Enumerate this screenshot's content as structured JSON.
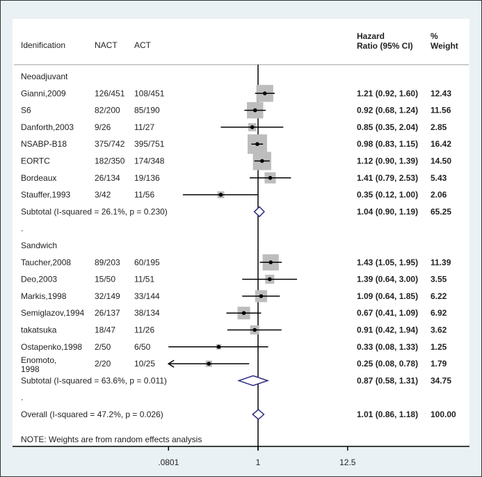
{
  "chart_data": {
    "type": "forest",
    "scale": "log",
    "reference_value": 1,
    "x_ticks": [
      {
        "value": 0.0801,
        "label": ".0801"
      },
      {
        "value": 1,
        "label": "1"
      },
      {
        "value": 12.5,
        "label": "12.5"
      }
    ],
    "headers": {
      "study": "Idenification",
      "nact": "NACT",
      "act": "ACT",
      "hr_line1": "Hazard",
      "hr_line2": "Ratio (95% CI)",
      "weight_line1": "%",
      "weight_line2": "Weight"
    },
    "rows": [
      {
        "type": "group",
        "label": "Neoadjuvant"
      },
      {
        "type": "study",
        "label": "Gianni,2009",
        "nact": "126/451",
        "act": "108/451",
        "hr": 1.21,
        "lo": 0.92,
        "hi": 1.6,
        "hr_text": "1.21 (0.92, 1.60)",
        "weight": 12.43,
        "weight_text": "12.43"
      },
      {
        "type": "study",
        "label": "S6",
        "nact": "82/200",
        "act": "85/190",
        "hr": 0.92,
        "lo": 0.68,
        "hi": 1.24,
        "hr_text": "0.92 (0.68, 1.24)",
        "weight": 11.56,
        "weight_text": "11.56"
      },
      {
        "type": "study",
        "label": "Danforth,2003",
        "nact": "9/26",
        "act": "11/27",
        "hr": 0.85,
        "lo": 0.35,
        "hi": 2.04,
        "hr_text": "0.85 (0.35, 2.04)",
        "weight": 2.85,
        "weight_text": "2.85"
      },
      {
        "type": "study",
        "label": "NSABP-B18",
        "nact": "375/742",
        "act": "395/751",
        "hr": 0.98,
        "lo": 0.83,
        "hi": 1.15,
        "hr_text": "0.98 (0.83, 1.15)",
        "weight": 16.42,
        "weight_text": "16.42"
      },
      {
        "type": "study",
        "label": "EORTC",
        "nact": "182/350",
        "act": "174/348",
        "hr": 1.12,
        "lo": 0.9,
        "hi": 1.39,
        "hr_text": "1.12 (0.90, 1.39)",
        "weight": 14.5,
        "weight_text": "14.50"
      },
      {
        "type": "study",
        "label": "Bordeaux",
        "nact": "26/134",
        "act": "19/136",
        "hr": 1.41,
        "lo": 0.79,
        "hi": 2.53,
        "hr_text": "1.41 (0.79, 2.53)",
        "weight": 5.43,
        "weight_text": "5.43"
      },
      {
        "type": "study",
        "label": "Stauffer,1993",
        "nact": "3/42",
        "act": "11/56",
        "hr": 0.35,
        "lo": 0.12,
        "hi": 1.0,
        "hr_text": "0.35 (0.12, 1.00)",
        "weight": 2.06,
        "weight_text": "2.06"
      },
      {
        "type": "subtotal",
        "label": "Subtotal  (I-squared = 26.1%, p = 0.230)",
        "hr": 1.04,
        "lo": 0.9,
        "hi": 1.19,
        "hr_text": "1.04 (0.90, 1.19)",
        "weight": 65.25,
        "weight_text": "65.25"
      },
      {
        "type": "blank",
        "label": "."
      },
      {
        "type": "group",
        "label": "Sandwich"
      },
      {
        "type": "study",
        "label": "Taucher,2008",
        "nact": "89/203",
        "act": "60/195",
        "hr": 1.43,
        "lo": 1.05,
        "hi": 1.95,
        "hr_text": "1.43 (1.05, 1.95)",
        "weight": 11.39,
        "weight_text": "11.39"
      },
      {
        "type": "study",
        "label": "Deo,2003",
        "nact": "15/50",
        "act": "11/51",
        "hr": 1.39,
        "lo": 0.64,
        "hi": 3.0,
        "hr_text": "1.39 (0.64, 3.00)",
        "weight": 3.55,
        "weight_text": "3.55"
      },
      {
        "type": "study",
        "label": "Markis,1998",
        "nact": "32/149",
        "act": "33/144",
        "hr": 1.09,
        "lo": 0.64,
        "hi": 1.85,
        "hr_text": "1.09 (0.64, 1.85)",
        "weight": 6.22,
        "weight_text": "6.22"
      },
      {
        "type": "study",
        "label": "Semiglazov,1994",
        "nact": "26/137",
        "act": "38/134",
        "hr": 0.67,
        "lo": 0.41,
        "hi": 1.09,
        "hr_text": "0.67 (0.41, 1.09)",
        "weight": 6.92,
        "weight_text": "6.92"
      },
      {
        "type": "study",
        "label": "takatsuka",
        "nact": "18/47",
        "act": "11/26",
        "hr": 0.91,
        "lo": 0.42,
        "hi": 1.94,
        "hr_text": "0.91 (0.42, 1.94)",
        "weight": 3.62,
        "weight_text": "3.62"
      },
      {
        "type": "study",
        "label": "Ostapenko,1998",
        "nact": "2/50",
        "act": "6/50",
        "hr": 0.33,
        "lo": 0.08,
        "hi": 1.33,
        "hr_text": "0.33 (0.08, 1.33)",
        "weight": 1.25,
        "weight_text": "1.25"
      },
      {
        "type": "study",
        "label": "Enomoto,",
        "label2": "1998",
        "nact": "2/20",
        "act": "10/25",
        "hr": 0.25,
        "lo": 0.08,
        "hi": 0.78,
        "hr_text": "0.25 (0.08, 0.78)",
        "weight": 1.79,
        "weight_text": "1.79",
        "arrow_left": true
      },
      {
        "type": "subtotal",
        "label": "Subtotal  (I-squared = 63.6%, p = 0.011)",
        "hr": 0.87,
        "lo": 0.58,
        "hi": 1.31,
        "hr_text": "0.87 (0.58, 1.31)",
        "weight": 34.75,
        "weight_text": "34.75"
      },
      {
        "type": "blank",
        "label": "."
      },
      {
        "type": "overall",
        "label": "Overall  (I-squared = 47.2%, p = 0.026)",
        "hr": 1.01,
        "lo": 0.86,
        "hi": 1.18,
        "hr_text": "1.01 (0.86, 1.18)",
        "weight": 100.0,
        "weight_text": "100.00"
      }
    ],
    "note": "NOTE: Weights are from random effects analysis",
    "colors": {
      "box": "#bdbdbd",
      "line": "#000000",
      "diamond": "#2a2a80",
      "text": "#222222"
    }
  }
}
